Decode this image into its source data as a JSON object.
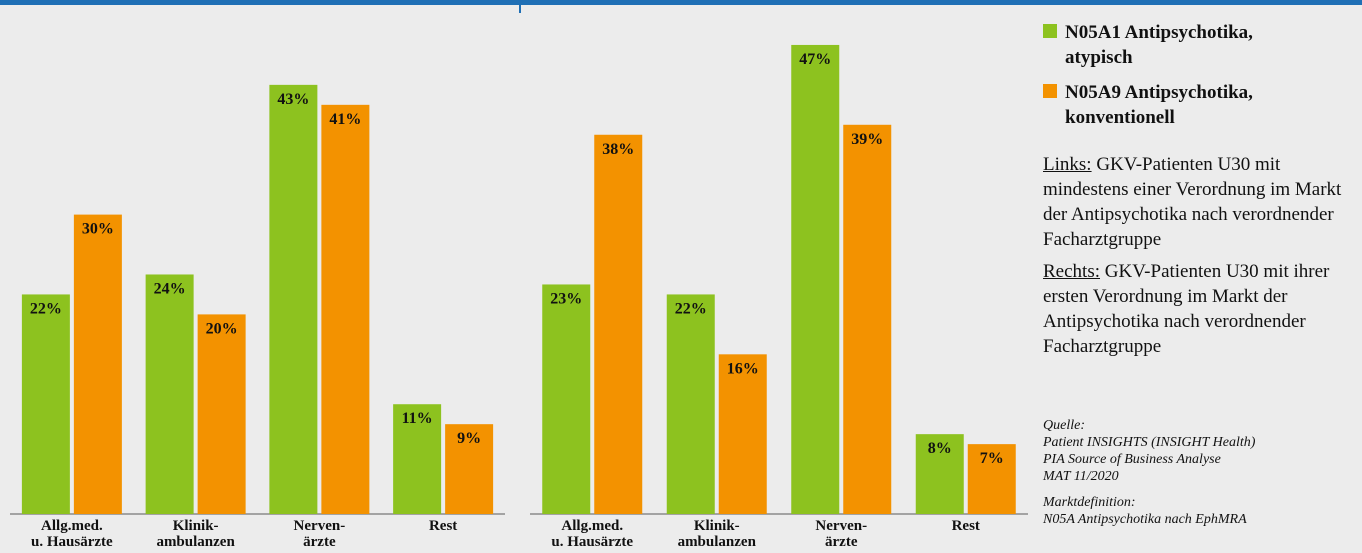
{
  "colors": {
    "atypisch": "#8dc21f",
    "konventionell": "#f39200",
    "topline": "#1f6fb5",
    "axis": "#777777",
    "background": "#ececec"
  },
  "legend": [
    {
      "key": "atypisch",
      "label": "N05A1 Antipsychotika, atypisch"
    },
    {
      "key": "konventionell",
      "label": "N05A9 Antipsychotika, konventionell"
    }
  ],
  "notes": {
    "left_label": "Links:",
    "left_text": " GKV-Patienten U30 mit mindestens einer Verordnung im Markt der Antipsychotika nach verordnender Facharztgruppe",
    "right_label": "Rechts:",
    "right_text": " GKV-Patienten U30 mit ihrer ersten Verordnung im Markt der Antipsychotika nach verordnender Facharztgruppe"
  },
  "source": {
    "quelle_label": "Quelle:",
    "quelle_lines": [
      "Patient INSIGHTS (INSIGHT Health)",
      "PIA Source of Business Analyse",
      "MAT 11/2020"
    ],
    "markt_label": "Marktdefinition:",
    "markt_line": "N05A Antipsychotika nach EphMRA"
  },
  "chart_data": [
    {
      "type": "bar",
      "categories": [
        [
          "Allg.med.",
          "u. Hausärzte"
        ],
        [
          "Klinik-",
          "ambulanzen"
        ],
        [
          "Nerven-",
          "ärzte"
        ],
        [
          "Rest"
        ]
      ],
      "series": [
        {
          "name": "N05A1 Antipsychotika, atypisch",
          "key": "atypisch",
          "values": [
            22,
            24,
            43,
            11
          ],
          "labels": [
            "22%",
            "24%",
            "43%",
            "11%"
          ]
        },
        {
          "name": "N05A9 Antipsychotika, konventionell",
          "key": "konventionell",
          "values": [
            30,
            20,
            41,
            9
          ],
          "labels": [
            "30%",
            "20%",
            "41%",
            "9%"
          ]
        }
      ],
      "ylim": [
        0,
        50
      ],
      "xlabel": "",
      "ylabel": "",
      "title": ""
    },
    {
      "type": "bar",
      "categories": [
        [
          "Allg.med.",
          "u. Hausärzte"
        ],
        [
          "Klinik-",
          "ambulanzen"
        ],
        [
          "Nerven-",
          "ärzte"
        ],
        [
          "Rest"
        ]
      ],
      "series": [
        {
          "name": "N05A1 Antipsychotika, atypisch",
          "key": "atypisch",
          "values": [
            23,
            22,
            47,
            8
          ],
          "labels": [
            "23%",
            "22%",
            "47%",
            "8%"
          ]
        },
        {
          "name": "N05A9 Antipsychotika, konventionell",
          "key": "konventionell",
          "values": [
            38,
            16,
            39,
            7
          ],
          "labels": [
            "38%",
            "16%",
            "39%",
            "7%"
          ]
        }
      ],
      "ylim": [
        0,
        50
      ],
      "xlabel": "",
      "ylabel": "",
      "title": ""
    }
  ]
}
